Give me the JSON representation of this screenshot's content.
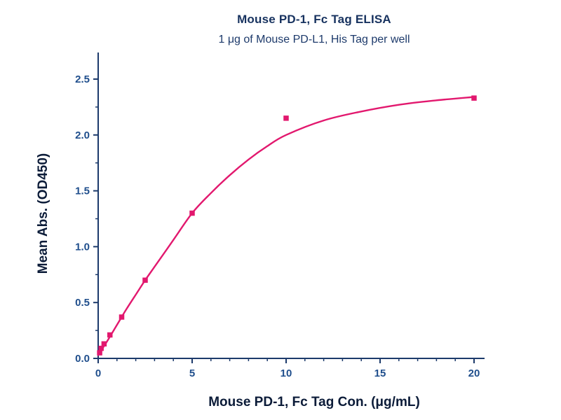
{
  "chart_data": {
    "type": "scatter",
    "title": "Mouse PD-1, Fc Tag ELISA",
    "subtitle": "1 μg of Mouse PD-L1, His Tag per well",
    "xlabel": "Mouse PD-1, Fc Tag Con. (μg/mL)",
    "ylabel": "Mean Abs. (OD450)",
    "xlim": [
      0,
      20
    ],
    "ylim": [
      0,
      2.5
    ],
    "x_ticks": [
      0,
      5,
      10,
      15,
      20
    ],
    "x_tick_labels": [
      "0",
      "5",
      "10",
      "15",
      "20"
    ],
    "x_minor_step": 1,
    "y_ticks": [
      0,
      0.5,
      1.0,
      1.5,
      2.0,
      2.5
    ],
    "y_tick_labels": [
      "0.0",
      "0.5",
      "1.0",
      "1.5",
      "2.0",
      "2.5"
    ],
    "y_minor_step": 0.25,
    "grid": false,
    "legend": "none",
    "points": [
      [
        0.078,
        0.05
      ],
      [
        0.156,
        0.09
      ],
      [
        0.313,
        0.13
      ],
      [
        0.625,
        0.21
      ],
      [
        1.25,
        0.37
      ],
      [
        2.5,
        0.7
      ],
      [
        5,
        1.3
      ],
      [
        10,
        2.15
      ],
      [
        20,
        2.33
      ]
    ],
    "fit_curve": [
      [
        0,
        0.03
      ],
      [
        0.5,
        0.16
      ],
      [
        1,
        0.3
      ],
      [
        1.5,
        0.44
      ],
      [
        2,
        0.57
      ],
      [
        2.5,
        0.7
      ],
      [
        3,
        0.82
      ],
      [
        4,
        1.06
      ],
      [
        5,
        1.3
      ],
      [
        6,
        1.48
      ],
      [
        7,
        1.64
      ],
      [
        8,
        1.78
      ],
      [
        9,
        1.9
      ],
      [
        10,
        2.0
      ],
      [
        12,
        2.13
      ],
      [
        14,
        2.21
      ],
      [
        16,
        2.27
      ],
      [
        18,
        2.31
      ],
      [
        20,
        2.34
      ]
    ],
    "colors": {
      "curve": "#e2186e",
      "marker": "#e2186e",
      "axis": "#1c3a6b",
      "tick_text": "#1f4e8c",
      "title_text": "#17325f",
      "label_text": "#0b1b38"
    }
  }
}
